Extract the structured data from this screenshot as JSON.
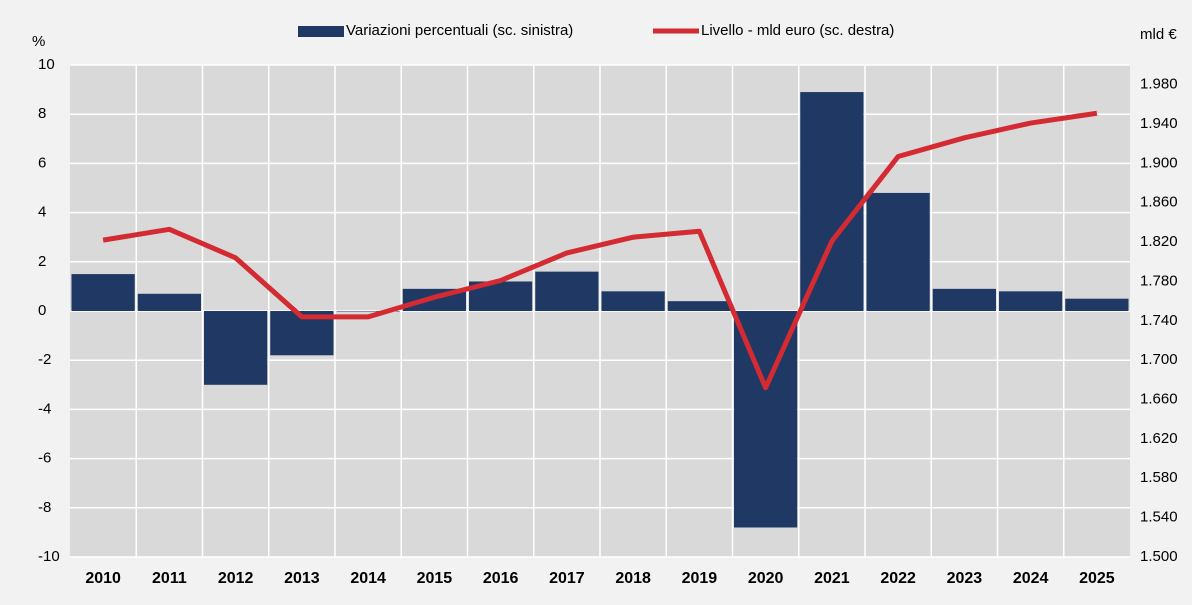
{
  "chart_data": {
    "type": "bar_line",
    "ylabel": "%",
    "y2label": "mld €",
    "categories": [
      "2010",
      "2011",
      "2012",
      "2013",
      "2014",
      "2015",
      "2016",
      "2017",
      "2018",
      "2019",
      "2020",
      "2021",
      "2022",
      "2023",
      "2024",
      "2025"
    ],
    "series": [
      {
        "name": "Variazioni percentuali (sc. sinistra)",
        "type": "bar",
        "color": "#1f3864",
        "values": [
          1.5,
          0.7,
          -3.0,
          -1.8,
          0.0,
          0.9,
          1.2,
          1.6,
          0.8,
          0.4,
          -8.8,
          8.9,
          4.8,
          0.9,
          0.8,
          0.5
        ]
      },
      {
        "name": "Livello - mld euro (sc. destra)",
        "type": "line",
        "axis": "y2",
        "color": "#d42a32",
        "values": [
          1822,
          1833,
          1804,
          1744,
          1744,
          1764,
          1781,
          1809,
          1825,
          1831,
          1672,
          1821,
          1907,
          1926,
          1941,
          1951
        ]
      }
    ],
    "ylim": [
      -10,
      10
    ],
    "yticks": [
      -10,
      -8,
      -6,
      -4,
      -2,
      0,
      2,
      4,
      6,
      8,
      10
    ],
    "y2lim": [
      1500,
      2000
    ],
    "y2ticks": [
      {
        "value": 1500,
        "label": "1.500"
      },
      {
        "value": 1540,
        "label": "1.540"
      },
      {
        "value": 1580,
        "label": "1.580"
      },
      {
        "value": 1620,
        "label": "1.620"
      },
      {
        "value": 1660,
        "label": "1.660"
      },
      {
        "value": 1700,
        "label": "1.700"
      },
      {
        "value": 1740,
        "label": "1.740"
      },
      {
        "value": 1780,
        "label": "1.780"
      },
      {
        "value": 1820,
        "label": "1.820"
      },
      {
        "value": 1860,
        "label": "1.860"
      },
      {
        "value": 1900,
        "label": "1.900"
      },
      {
        "value": 1940,
        "label": "1.940"
      },
      {
        "value": 1980,
        "label": "1.980"
      }
    ],
    "grid": true
  }
}
